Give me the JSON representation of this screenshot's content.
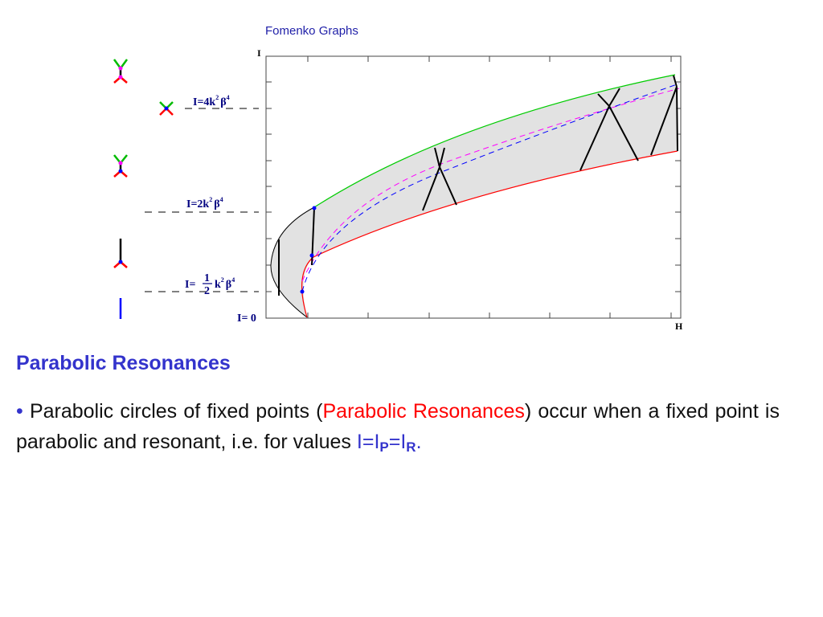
{
  "figure": {
    "title": "Fomenko Graphs",
    "y_axis_label": "I",
    "x_axis_label": "H",
    "levels": {
      "l4": {
        "prefix": "I=4k",
        "sup1": "2",
        "beta": "β",
        "sup2": "4"
      },
      "l2": {
        "prefix": "I=2k",
        "sup1": "2",
        "beta": "β",
        "sup2": "4"
      },
      "lhalf": {
        "prefix": "I=",
        "num": "1",
        "den": "2",
        "k": "k",
        "sup1": "2",
        "beta": "β",
        "sup2": "4"
      },
      "l0": "I= 0"
    },
    "colors": {
      "upper_boundary": "#00cc00",
      "lower_boundary": "#ff0000",
      "dashed_blue": "#0000ff",
      "dashed_magenta": "#ff00ff",
      "region_fill": "#e2e2e2"
    }
  },
  "section": {
    "heading": "Parabolic Resonances",
    "bullet": "•",
    "text1": "Parabolic circles of fixed points (",
    "highlight": "Parabolic Resonances",
    "text2": ") occur when a fixed point is parabolic and resonant, i.e. for values ",
    "eq": {
      "i1": "I",
      "eq1": "=",
      "i2": "I",
      "sub1": "P",
      "eq2": "=",
      "i3": "I",
      "sub2": "R",
      "dot": "."
    }
  }
}
